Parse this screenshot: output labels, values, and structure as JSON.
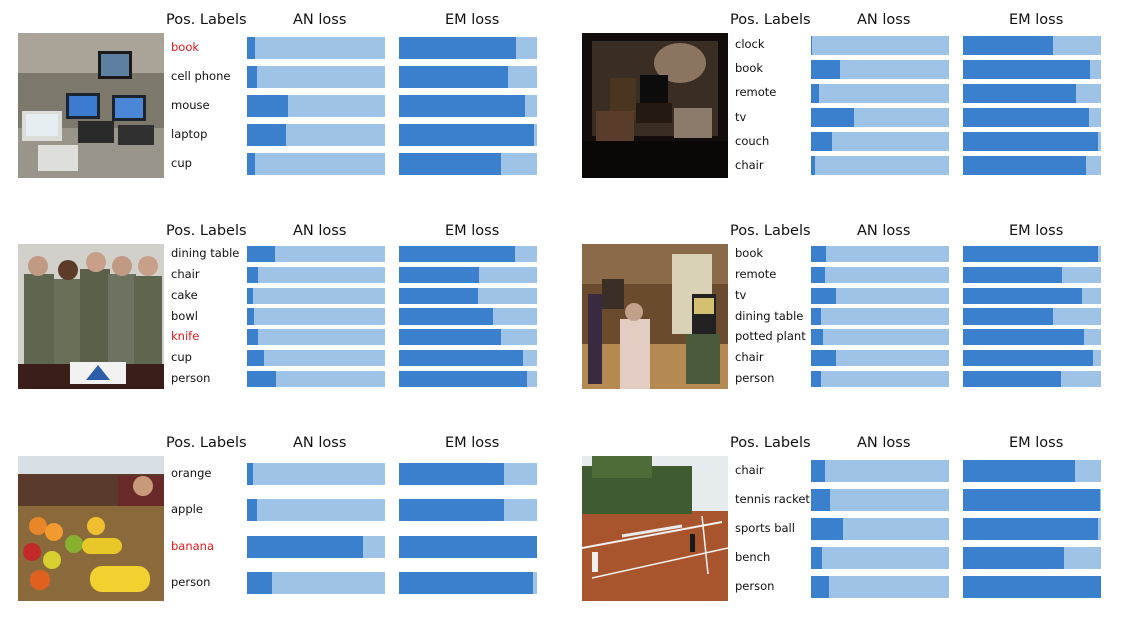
{
  "header_text": {
    "labels": "Pos. Labels",
    "an": "AN loss",
    "em": "EM loss"
  },
  "colors": {
    "bar_bg": "#9fc3e7",
    "bar_fill": "#3a80cc",
    "highlight": "#e31a1c"
  },
  "chart_data": [
    {
      "type": "bar",
      "orientation": "horizontal",
      "scene": "office-laptops-photo",
      "series": [
        {
          "name": "AN loss"
        },
        {
          "name": "EM loss"
        }
      ],
      "rows": [
        {
          "label": "book",
          "highlight": true,
          "an": 0.06,
          "em": 0.85
        },
        {
          "label": "cell phone",
          "highlight": false,
          "an": 0.07,
          "em": 0.79
        },
        {
          "label": "mouse",
          "highlight": false,
          "an": 0.3,
          "em": 0.91
        },
        {
          "label": "laptop",
          "highlight": false,
          "an": 0.28,
          "em": 0.98
        },
        {
          "label": "cup",
          "highlight": false,
          "an": 0.06,
          "em": 0.74
        }
      ]
    },
    {
      "type": "bar",
      "orientation": "horizontal",
      "scene": "living-room-photo",
      "series": [
        {
          "name": "AN loss"
        },
        {
          "name": "EM loss"
        }
      ],
      "rows": [
        {
          "label": "clock",
          "highlight": false,
          "an": 0.01,
          "em": 0.65
        },
        {
          "label": "book",
          "highlight": false,
          "an": 0.21,
          "em": 0.92
        },
        {
          "label": "remote",
          "highlight": false,
          "an": 0.06,
          "em": 0.82
        },
        {
          "label": "tv",
          "highlight": false,
          "an": 0.31,
          "em": 0.91
        },
        {
          "label": "couch",
          "highlight": false,
          "an": 0.15,
          "em": 0.98
        },
        {
          "label": "chair",
          "highlight": false,
          "an": 0.03,
          "em": 0.89
        }
      ]
    },
    {
      "type": "bar",
      "orientation": "horizontal",
      "scene": "soldiers-cake-photo",
      "series": [
        {
          "name": "AN loss"
        },
        {
          "name": "EM loss"
        }
      ],
      "rows": [
        {
          "label": "dining table",
          "highlight": false,
          "an": 0.2,
          "em": 0.84
        },
        {
          "label": "chair",
          "highlight": false,
          "an": 0.08,
          "em": 0.58
        },
        {
          "label": "cake",
          "highlight": false,
          "an": 0.04,
          "em": 0.57
        },
        {
          "label": "bowl",
          "highlight": false,
          "an": 0.05,
          "em": 0.68
        },
        {
          "label": "knife",
          "highlight": true,
          "an": 0.08,
          "em": 0.74
        },
        {
          "label": "cup",
          "highlight": false,
          "an": 0.12,
          "em": 0.9
        },
        {
          "label": "person",
          "highlight": false,
          "an": 0.21,
          "em": 0.93
        }
      ]
    },
    {
      "type": "bar",
      "orientation": "horizontal",
      "scene": "lobby-people-photo",
      "series": [
        {
          "name": "AN loss"
        },
        {
          "name": "EM loss"
        }
      ],
      "rows": [
        {
          "label": "book",
          "highlight": false,
          "an": 0.11,
          "em": 0.98
        },
        {
          "label": "remote",
          "highlight": false,
          "an": 0.1,
          "em": 0.72
        },
        {
          "label": "tv",
          "highlight": false,
          "an": 0.18,
          "em": 0.86
        },
        {
          "label": "dining table",
          "highlight": false,
          "an": 0.07,
          "em": 0.65
        },
        {
          "label": "potted plant",
          "highlight": false,
          "an": 0.09,
          "em": 0.88
        },
        {
          "label": "chair",
          "highlight": false,
          "an": 0.18,
          "em": 0.94
        },
        {
          "label": "person",
          "highlight": false,
          "an": 0.07,
          "em": 0.71
        }
      ]
    },
    {
      "type": "bar",
      "orientation": "horizontal",
      "scene": "fruit-market-photo",
      "series": [
        {
          "name": "AN loss"
        },
        {
          "name": "EM loss"
        }
      ],
      "rows": [
        {
          "label": "orange",
          "highlight": false,
          "an": 0.04,
          "em": 0.76
        },
        {
          "label": "apple",
          "highlight": false,
          "an": 0.07,
          "em": 0.76
        },
        {
          "label": "banana",
          "highlight": true,
          "an": 0.84,
          "em": 1.0
        },
        {
          "label": "person",
          "highlight": false,
          "an": 0.18,
          "em": 0.97
        }
      ]
    },
    {
      "type": "bar",
      "orientation": "horizontal",
      "scene": "tennis-court-photo",
      "series": [
        {
          "name": "AN loss"
        },
        {
          "name": "EM loss"
        }
      ],
      "rows": [
        {
          "label": "chair",
          "highlight": false,
          "an": 0.1,
          "em": 0.81
        },
        {
          "label": "tennis racket",
          "highlight": false,
          "an": 0.14,
          "em": 0.99
        },
        {
          "label": "sports ball",
          "highlight": false,
          "an": 0.23,
          "em": 0.98
        },
        {
          "label": "bench",
          "highlight": false,
          "an": 0.08,
          "em": 0.73
        },
        {
          "label": "person",
          "highlight": false,
          "an": 0.13,
          "em": 1.0
        }
      ]
    }
  ]
}
